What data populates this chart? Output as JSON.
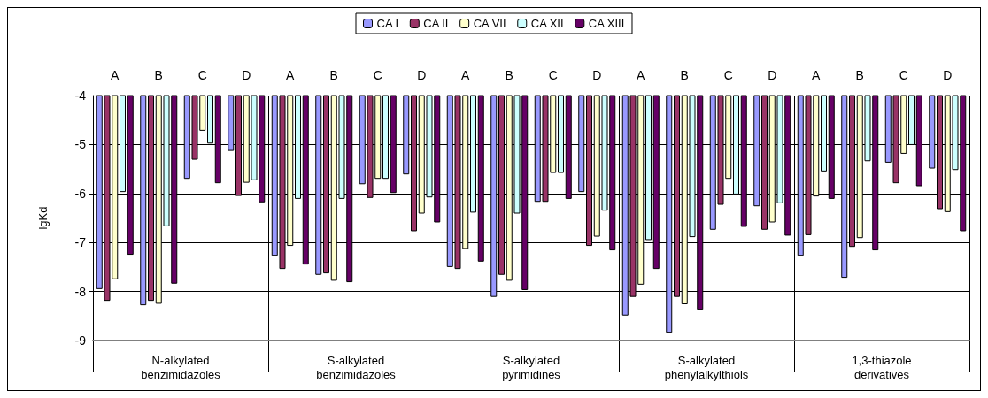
{
  "chart_data": {
    "type": "bar",
    "ylabel": "lgKd",
    "categories": [
      "A",
      "B",
      "C",
      "D",
      "A",
      "B",
      "C",
      "D",
      "A",
      "B",
      "C",
      "D",
      "A",
      "B",
      "C",
      "D",
      "A",
      "B",
      "C",
      "D"
    ],
    "annotations": [
      "N-alkylated\nbenzimidazoles",
      "S-alkylated\nbenzimidazoles",
      "S-alkylated\npyrimidines",
      "S-alkylated\nphenylalkylthiols",
      "1,3-thiazole\nderivatives"
    ],
    "series": [
      {
        "name": "CA I",
        "color": "#9999ff",
        "values": [
          -7.95,
          -8.28,
          -5.7,
          -5.13,
          -7.27,
          -7.66,
          -5.81,
          -5.61,
          -7.5,
          -8.11,
          -6.17,
          -5.97,
          -8.49,
          -8.84,
          -6.74,
          -6.26,
          -7.27,
          -7.72,
          -5.37,
          -5.49
        ]
      },
      {
        "name": "CA II",
        "color": "#993366",
        "values": [
          -8.19,
          -8.19,
          -5.31,
          -6.05,
          -7.54,
          -7.63,
          -6.09,
          -6.77,
          -7.54,
          -7.66,
          -6.17,
          -7.07,
          -8.11,
          -8.11,
          -6.23,
          -6.74,
          -6.85,
          -7.09,
          -5.79,
          -6.32
        ]
      },
      {
        "name": "CA VII",
        "color": "#ffffcc",
        "values": [
          -7.75,
          -8.25,
          -4.72,
          -5.78,
          -7.07,
          -7.78,
          -5.7,
          -6.41,
          -7.13,
          -7.78,
          -5.58,
          -6.88,
          -7.86,
          -8.26,
          -5.7,
          -6.59,
          -6.06,
          -6.91,
          -5.19,
          -6.38
        ]
      },
      {
        "name": "CA XII",
        "color": "#ccffff",
        "values": [
          -5.97,
          -6.67,
          -4.98,
          -5.73,
          -6.11,
          -6.11,
          -5.7,
          -6.08,
          -6.39,
          -6.41,
          -5.58,
          -6.35,
          -6.95,
          -6.89,
          -6.02,
          -6.2,
          -5.55,
          -5.34,
          -5.01,
          -5.52
        ]
      },
      {
        "name": "CA XIII",
        "color": "#660066",
        "values": [
          -7.25,
          -7.84,
          -5.79,
          -6.18,
          -7.45,
          -7.81,
          -5.99,
          -6.59,
          -7.39,
          -7.97,
          -6.11,
          -7.16,
          -7.54,
          -8.37,
          -6.68,
          -6.86,
          -6.11,
          -7.16,
          -5.85,
          -6.77
        ]
      }
    ],
    "ylim": [
      -9,
      -4
    ],
    "yticks": [
      -9,
      -8,
      -7,
      -6,
      -5,
      -4
    ],
    "grid": "y",
    "legend": "top"
  }
}
